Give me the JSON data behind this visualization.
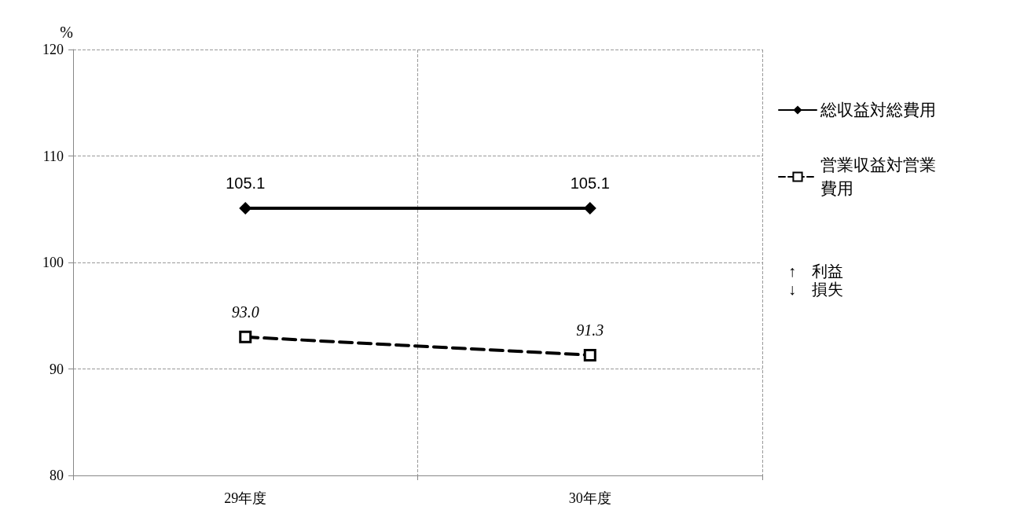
{
  "chart_data": {
    "type": "line",
    "ylabel": "%",
    "categories": [
      "29年度",
      "30年度"
    ],
    "series": [
      {
        "name": "総収益対総費用",
        "color": "#000000",
        "values": [
          105.1,
          105.1
        ],
        "value_labels": [
          "105.1",
          "105.1"
        ],
        "marker": "diamond",
        "line_style": "solid"
      },
      {
        "name": "営業収益対営業費用",
        "color": "#000000",
        "values": [
          93.0,
          91.3
        ],
        "value_labels": [
          "93.0",
          "91.3"
        ],
        "marker": "square",
        "line_style": "dashed"
      }
    ],
    "ylim": [
      80,
      120
    ],
    "yticks": [
      80,
      90,
      100,
      110,
      120
    ],
    "grid": true,
    "legend": "right",
    "annotations": [
      "↑　利益",
      "↓　損失"
    ]
  }
}
